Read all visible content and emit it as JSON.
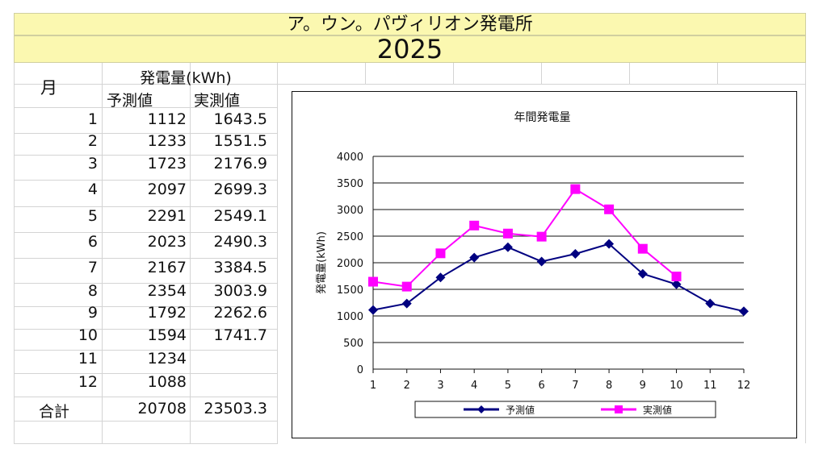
{
  "sheet": {
    "title": "ア。ウン。パヴィリオン発電所",
    "year": "2025",
    "month_header": "月",
    "energy_header": "発電量(kWh)",
    "pred_header": "予測値",
    "act_header": "実測値",
    "total_label": "合計",
    "total_pred": "20708",
    "total_act": "23503.3"
  },
  "rows": [
    {
      "m": "1",
      "p": "1112",
      "a": "1643.5"
    },
    {
      "m": "2",
      "p": "1233",
      "a": "1551.5"
    },
    {
      "m": "3",
      "p": "1723",
      "a": "2176.9"
    },
    {
      "m": "4",
      "p": "2097",
      "a": "2699.3"
    },
    {
      "m": "5",
      "p": "2291",
      "a": "2549.1"
    },
    {
      "m": "6",
      "p": "2023",
      "a": "2490.3"
    },
    {
      "m": "7",
      "p": "2167",
      "a": "3384.5"
    },
    {
      "m": "8",
      "p": "2354",
      "a": "3003.9"
    },
    {
      "m": "9",
      "p": "1792",
      "a": "2262.6"
    },
    {
      "m": "10",
      "p": "1594",
      "a": "1741.7"
    },
    {
      "m": "11",
      "p": "1234",
      "a": ""
    },
    {
      "m": "12",
      "p": "1088",
      "a": ""
    }
  ],
  "chart_data": {
    "type": "line",
    "title": "年間発電量",
    "ylabel": "発電量(kWh)",
    "xlabel": "",
    "x": [
      1,
      2,
      3,
      4,
      5,
      6,
      7,
      8,
      9,
      10,
      11,
      12
    ],
    "ylim": [
      0,
      4000
    ],
    "yticks": [
      0,
      500,
      1000,
      1500,
      2000,
      2500,
      3000,
      3500,
      4000
    ],
    "grid": true,
    "legend": "bottom",
    "series": [
      {
        "name": "予測値",
        "color": "#000080",
        "marker": "diamond",
        "values": [
          1112,
          1233,
          1723,
          2097,
          2291,
          2023,
          2167,
          2354,
          1792,
          1594,
          1234,
          1088
        ]
      },
      {
        "name": "実測値",
        "color": "#ff00ff",
        "marker": "square",
        "values": [
          1643.5,
          1551.5,
          2176.9,
          2699.3,
          2549.1,
          2490.3,
          3384.5,
          3003.9,
          2262.6,
          1741.7,
          null,
          null
        ]
      }
    ]
  }
}
